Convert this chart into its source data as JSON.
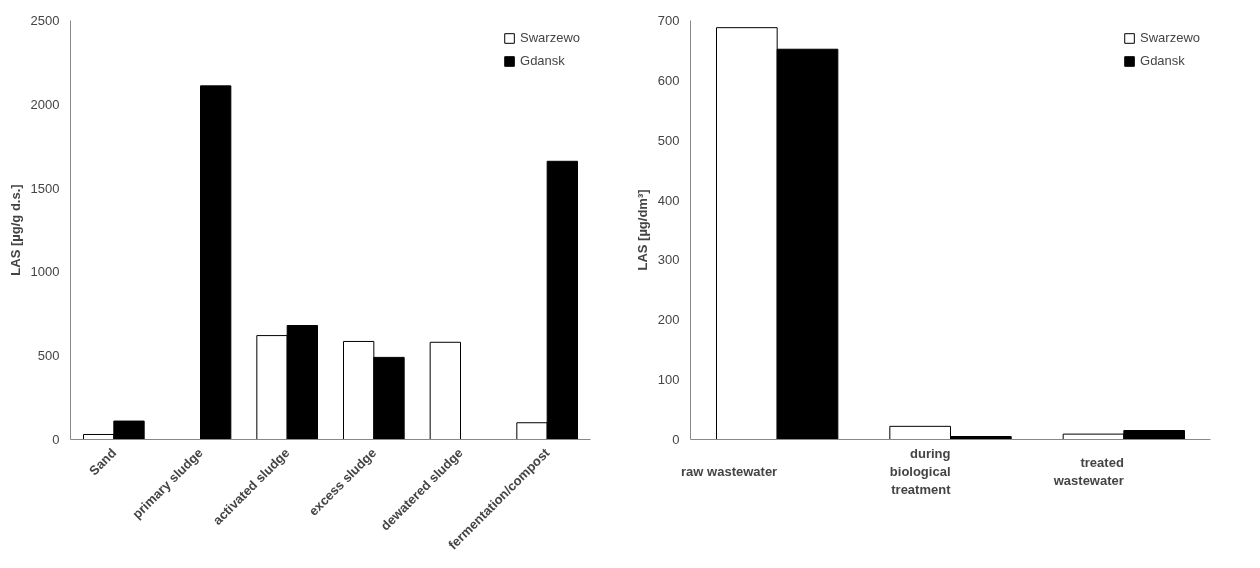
{
  "chart_data": [
    {
      "type": "bar",
      "ylabel": "LAS [µg/g d.s.]",
      "categories": [
        "Sand",
        "primary sludge",
        "activated sludge",
        "excess sludge",
        "dewatered sludge",
        "fermentation/compost"
      ],
      "series": [
        {
          "name": "Swarzewo",
          "color": "#ffffff",
          "values": [
            30,
            null,
            620,
            585,
            580,
            100
          ]
        },
        {
          "name": "Gdansk",
          "color": "#000000",
          "values": [
            110,
            2110,
            680,
            490,
            null,
            1660
          ]
        }
      ],
      "ylim": [
        0,
        2500
      ],
      "yticks": [
        0,
        500,
        1000,
        1500,
        2000,
        2500
      ],
      "grid": false,
      "legend": "top right"
    },
    {
      "type": "bar",
      "ylabel": "LAS [µg/dm³]",
      "categories": [
        "raw wastewater",
        "during biological treatment",
        "treated wastewater"
      ],
      "series": [
        {
          "name": "Swarzewo",
          "color": "#ffffff",
          "values": [
            688,
            22,
            9
          ]
        },
        {
          "name": "Gdansk",
          "color": "#000000",
          "values": [
            652,
            5,
            15
          ]
        }
      ],
      "ylim": [
        0,
        700
      ],
      "yticks": [
        0,
        100,
        200,
        300,
        400,
        500,
        600,
        700
      ],
      "grid": false,
      "legend": "top right"
    }
  ]
}
